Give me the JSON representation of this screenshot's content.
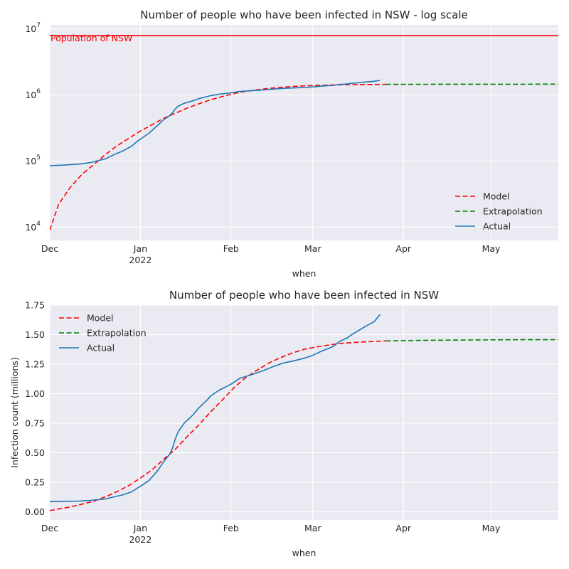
{
  "chart_data": [
    {
      "type": "line",
      "title": "Number of people who have been infected in NSW - log scale",
      "xlabel": "when",
      "ylabel": "",
      "yscale": "log",
      "ylim": [
        6300,
        11500000
      ],
      "xlim": [
        "2021-12-01",
        "2022-05-24"
      ],
      "x_ticks": [
        {
          "date": "2021-12-01",
          "label": "Dec",
          "sublabel": ""
        },
        {
          "date": "2022-01-01",
          "label": "Jan",
          "sublabel": "2022"
        },
        {
          "date": "2022-02-01",
          "label": "Feb",
          "sublabel": ""
        },
        {
          "date": "2022-03-01",
          "label": "Mar",
          "sublabel": ""
        },
        {
          "date": "2022-04-01",
          "label": "Apr",
          "sublabel": ""
        },
        {
          "date": "2022-05-01",
          "label": "May",
          "sublabel": ""
        }
      ],
      "y_ticks": [
        {
          "value": 10000,
          "label": "10",
          "exp": "4"
        },
        {
          "value": 100000,
          "label": "10",
          "exp": "5"
        },
        {
          "value": 1000000,
          "label": "10",
          "exp": "6"
        },
        {
          "value": 10000000,
          "label": "10",
          "exp": "7"
        }
      ],
      "grid": true,
      "legend_position": "lower-right",
      "hline": {
        "value": 7900000,
        "color": "#ff0000",
        "label": "Population of NSW"
      },
      "series_ref": "shared"
    },
    {
      "type": "line",
      "title": "Number of people who have been infected in NSW",
      "xlabel": "when",
      "ylabel": "Infection count (millions)",
      "yscale": "linear",
      "unit_divisor": 1000000,
      "ylim": [
        -0.07,
        1.75
      ],
      "xlim": [
        "2021-12-01",
        "2022-05-24"
      ],
      "x_ticks": [
        {
          "date": "2021-12-01",
          "label": "Dec",
          "sublabel": ""
        },
        {
          "date": "2022-01-01",
          "label": "Jan",
          "sublabel": "2022"
        },
        {
          "date": "2022-02-01",
          "label": "Feb",
          "sublabel": ""
        },
        {
          "date": "2022-03-01",
          "label": "Mar",
          "sublabel": ""
        },
        {
          "date": "2022-04-01",
          "label": "Apr",
          "sublabel": ""
        },
        {
          "date": "2022-05-01",
          "label": "May",
          "sublabel": ""
        }
      ],
      "y_ticks": [
        {
          "value": 0.0,
          "label": "0.00"
        },
        {
          "value": 0.25,
          "label": "0.25"
        },
        {
          "value": 0.5,
          "label": "0.50"
        },
        {
          "value": 0.75,
          "label": "0.75"
        },
        {
          "value": 1.0,
          "label": "1.00"
        },
        {
          "value": 1.25,
          "label": "1.25"
        },
        {
          "value": 1.5,
          "label": "1.50"
        },
        {
          "value": 1.75,
          "label": "1.75"
        }
      ],
      "grid": true,
      "legend_position": "upper-left",
      "series_ref": "shared"
    }
  ],
  "series": [
    {
      "name": "Model",
      "color": "#ff0000",
      "dash": "dashed",
      "x": [
        "2021-12-01",
        "2021-12-04",
        "2021-12-08",
        "2021-12-12",
        "2021-12-16",
        "2021-12-20",
        "2021-12-24",
        "2021-12-28",
        "2022-01-01",
        "2022-01-05",
        "2022-01-09",
        "2022-01-13",
        "2022-01-17",
        "2022-01-21",
        "2022-01-25",
        "2022-01-29",
        "2022-02-02",
        "2022-02-06",
        "2022-02-10",
        "2022-02-14",
        "2022-02-18",
        "2022-02-22",
        "2022-02-26",
        "2022-03-02",
        "2022-03-06",
        "2022-03-10",
        "2022-03-14",
        "2022-03-18",
        "2022-03-22",
        "2022-03-26"
      ],
      "y": [
        9000,
        22000,
        40000,
        63000,
        88000,
        125000,
        170000,
        220000,
        285000,
        355000,
        445000,
        530000,
        635000,
        735000,
        845000,
        945000,
        1050000,
        1135000,
        1200000,
        1260000,
        1305000,
        1345000,
        1375000,
        1395000,
        1410000,
        1425000,
        1432000,
        1438000,
        1442000,
        1447000
      ]
    },
    {
      "name": "Extrapolation",
      "color": "#008000",
      "dash": "dashed",
      "x": [
        "2022-03-26",
        "2022-04-10",
        "2022-04-25",
        "2022-05-10",
        "2022-05-24"
      ],
      "y": [
        1447000,
        1452000,
        1455000,
        1457000,
        1458000
      ]
    },
    {
      "name": "Actual",
      "color": "#1f77b4",
      "dash": "solid",
      "x": [
        "2021-12-01",
        "2021-12-06",
        "2021-12-11",
        "2021-12-15",
        "2021-12-20",
        "2021-12-23",
        "2021-12-26",
        "2021-12-29",
        "2021-12-31",
        "2022-01-01",
        "2022-01-04",
        "2022-01-07",
        "2022-01-09",
        "2022-01-11",
        "2022-01-12",
        "2022-01-13",
        "2022-01-14",
        "2022-01-16",
        "2022-01-19",
        "2022-01-21",
        "2022-01-24",
        "2022-01-25",
        "2022-01-28",
        "2022-02-01",
        "2022-02-04",
        "2022-02-08",
        "2022-02-12",
        "2022-02-15",
        "2022-02-19",
        "2022-02-22",
        "2022-02-26",
        "2022-03-01",
        "2022-03-04",
        "2022-03-08",
        "2022-03-10",
        "2022-03-13",
        "2022-03-14",
        "2022-03-16",
        "2022-03-19",
        "2022-03-22",
        "2022-03-24"
      ],
      "y": [
        85000,
        87000,
        90000,
        95000,
        108000,
        125000,
        142000,
        168000,
        200000,
        215000,
        265000,
        350000,
        425000,
        485000,
        540000,
        620000,
        680000,
        750000,
        820000,
        880000,
        950000,
        980000,
        1030000,
        1080000,
        1130000,
        1160000,
        1195000,
        1225000,
        1260000,
        1275000,
        1300000,
        1325000,
        1360000,
        1400000,
        1440000,
        1475000,
        1495000,
        1525000,
        1570000,
        1610000,
        1670000
      ]
    }
  ]
}
